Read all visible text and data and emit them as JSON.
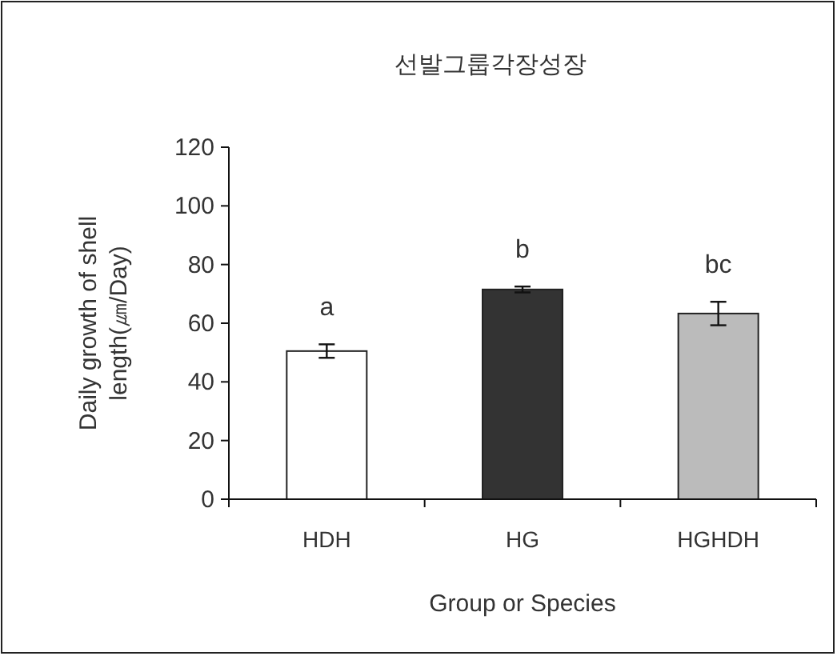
{
  "chart_data": {
    "type": "bar",
    "title": "선발그룹각장성장",
    "xlabel": "Group or Species",
    "ylabel": "Daily growth of shell length(㎛/Day)",
    "categories": [
      "HDH",
      "HG",
      "HGHDH"
    ],
    "values": [
      50.5,
      71.5,
      63.3
    ],
    "errors": [
      2.3,
      1,
      4
    ],
    "colors": [
      "#ffffff",
      "#333333",
      "#bbbbbb"
    ],
    "ylim": [
      0,
      120
    ],
    "yticks": [
      0,
      20,
      40,
      60,
      80,
      100,
      120
    ],
    "grid": false,
    "annotations": [
      "a",
      "b",
      "bc"
    ]
  }
}
